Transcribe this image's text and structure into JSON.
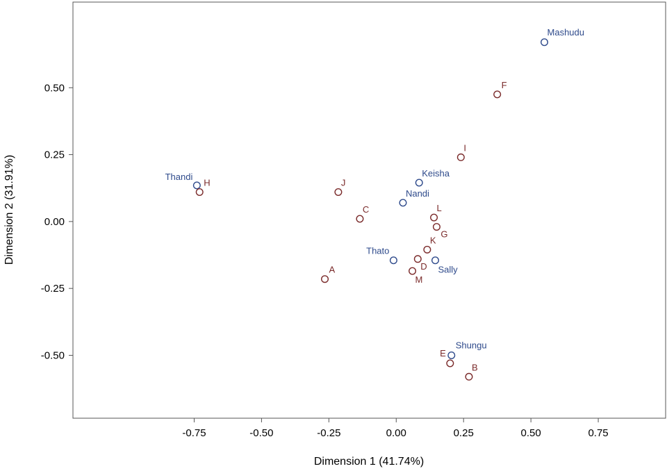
{
  "chart_data": {
    "type": "scatter",
    "xlabel": "Dimension 1 (41.74%)",
    "ylabel": "Dimension 2 (31.91%)",
    "xlim": [
      -1.2,
      1.0
    ],
    "ylim": [
      -0.735,
      0.82
    ],
    "xticks": [
      -0.75,
      -0.5,
      -0.25,
      0.0,
      0.25,
      0.5,
      0.75
    ],
    "xtick_labels": [
      "-0.75",
      "-0.50",
      "-0.25",
      "0.00",
      "0.25",
      "0.50",
      "0.75"
    ],
    "yticks": [
      -0.5,
      -0.25,
      0.0,
      0.25,
      0.5
    ],
    "ytick_labels": [
      "-0.50",
      "-0.25",
      "0.00",
      "0.25",
      "0.50"
    ],
    "grid": false,
    "series": [
      {
        "color": "#2e4a8b",
        "points": [
          {
            "label": "Mashudu",
            "x": 0.55,
            "y": 0.67
          },
          {
            "label": "Thandi",
            "x": -0.74,
            "y": 0.135
          },
          {
            "label": "Keisha",
            "x": 0.085,
            "y": 0.145
          },
          {
            "label": "Nandi",
            "x": 0.025,
            "y": 0.07
          },
          {
            "label": "Thato",
            "x": -0.01,
            "y": -0.145
          },
          {
            "label": "Sally",
            "x": 0.145,
            "y": -0.145
          },
          {
            "label": "Shungu",
            "x": 0.205,
            "y": -0.5
          }
        ]
      },
      {
        "color": "#7a2a2a",
        "points": [
          {
            "label": "F",
            "x": 0.375,
            "y": 0.475
          },
          {
            "label": "I",
            "x": 0.24,
            "y": 0.24
          },
          {
            "label": "H",
            "x": -0.73,
            "y": 0.11
          },
          {
            "label": "J",
            "x": -0.215,
            "y": 0.11
          },
          {
            "label": "C",
            "x": -0.135,
            "y": 0.01
          },
          {
            "label": "L",
            "x": 0.14,
            "y": 0.015
          },
          {
            "label": "G",
            "x": 0.15,
            "y": -0.02
          },
          {
            "label": "K",
            "x": 0.115,
            "y": -0.105
          },
          {
            "label": "D",
            "x": 0.08,
            "y": -0.14
          },
          {
            "label": "M",
            "x": 0.06,
            "y": -0.185
          },
          {
            "label": "A",
            "x": -0.265,
            "y": -0.215
          },
          {
            "label": "E",
            "x": 0.2,
            "y": -0.53
          },
          {
            "label": "B",
            "x": 0.27,
            "y": -0.58
          }
        ]
      }
    ]
  }
}
